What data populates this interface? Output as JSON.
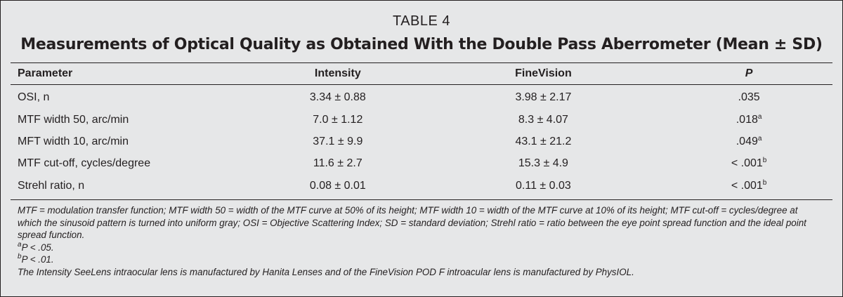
{
  "table_number": "TABLE 4",
  "title": "Measurements of Optical Quality as Obtained With the Double Pass Aberrometer (Mean ± SD)",
  "columns": [
    "Parameter",
    "Intensity",
    "FineVision",
    "P"
  ],
  "rows": [
    {
      "parameter": "OSI, n",
      "intensity": "3.34 ± 0.88",
      "finevision": "3.98 ± 2.17",
      "p": ".035",
      "p_sup": ""
    },
    {
      "parameter": "MTF width 50, arc/min",
      "intensity": "7.0 ± 1.12",
      "finevision": "8.3 ± 4.07",
      "p": ".018",
      "p_sup": "a"
    },
    {
      "parameter": "MFT width 10, arc/min",
      "intensity": "37.1 ± 9.9",
      "finevision": "43.1 ± 21.2",
      "p": ".049",
      "p_sup": "a"
    },
    {
      "parameter": "MTF cut-off, cycles/degree",
      "intensity": "11.6 ± 2.7",
      "finevision": "15.3 ± 4.9",
      "p": "< .001",
      "p_sup": "b"
    },
    {
      "parameter": "Strehl ratio, n",
      "intensity": "0.08 ± 0.01",
      "finevision": "0.11 ± 0.03",
      "p": "< .001",
      "p_sup": "b"
    }
  ],
  "footnotes": {
    "definitions": "MTF = modulation transfer function; MTF width 50 = width of the MTF curve at 50% of its height; MTF width 10 = width of the MTF curve at 10% of its height; MTF cut-off = cycles/degree at which the sinusoid pattern is turned into uniform gray; OSI = Objective Scattering Index; SD = standard deviation; Strehl ratio = ratio between the eye point spread function and the ideal point spread function.",
    "note_a_marker": "a",
    "note_a": "P < .05.",
    "note_b_marker": "b",
    "note_b": "P < .01.",
    "manufacturers": "The Intensity SeeLens intraocular lens is manufactured by Hanita Lenses and of the FineVision POD F introacular lens is manufactured by PhysIOL."
  }
}
